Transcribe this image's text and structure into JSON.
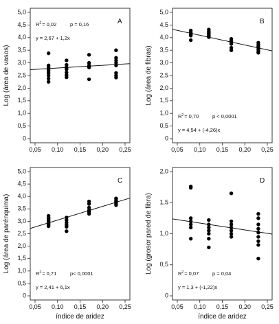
{
  "chart_data": [
    {
      "type": "scatter",
      "panel_letter": "A",
      "ylabel": "Log (área de vasos)",
      "xlabel": "",
      "xlim": [
        0.05,
        0.25
      ],
      "ylim": [
        0,
        5.0
      ],
      "xticks": [
        "0,05",
        "0,10",
        "0,15",
        "0,20",
        "0,25"
      ],
      "yticks": [
        "0",
        "0,5",
        "1,0",
        "1,5",
        "2,0",
        "2,5",
        "3,0",
        "3,5",
        "4,0",
        "4,5",
        "5,0"
      ],
      "stats": {
        "r2_label": "R",
        "r2_exp": "2",
        "r2_value": "= 0,02",
        "p_text": "p = 0,16",
        "equation": "y = 2,67 + 1,2x"
      },
      "annotation_position": "top-left",
      "fit_line": {
        "intercept": 2.67,
        "slope": 1.2
      },
      "points": [
        [
          0.08,
          3.38
        ],
        [
          0.08,
          2.9
        ],
        [
          0.08,
          2.82
        ],
        [
          0.08,
          2.75
        ],
        [
          0.08,
          2.68
        ],
        [
          0.08,
          2.6
        ],
        [
          0.08,
          2.5
        ],
        [
          0.08,
          2.38
        ],
        [
          0.08,
          2.25
        ],
        [
          0.12,
          3.1
        ],
        [
          0.12,
          2.92
        ],
        [
          0.12,
          2.82
        ],
        [
          0.12,
          2.75
        ],
        [
          0.12,
          2.62
        ],
        [
          0.12,
          2.52
        ],
        [
          0.12,
          2.43
        ],
        [
          0.17,
          3.32
        ],
        [
          0.17,
          3.0
        ],
        [
          0.17,
          2.9
        ],
        [
          0.17,
          2.82
        ],
        [
          0.17,
          2.35
        ],
        [
          0.23,
          3.5
        ],
        [
          0.23,
          3.2
        ],
        [
          0.23,
          3.1
        ],
        [
          0.23,
          3.0
        ],
        [
          0.23,
          2.9
        ],
        [
          0.23,
          2.6
        ],
        [
          0.23,
          2.5
        ],
        [
          0.23,
          2.42
        ]
      ]
    },
    {
      "type": "scatter",
      "panel_letter": "B",
      "ylabel": "Log (área de fibras)",
      "xlabel": "",
      "xlim": [
        0.05,
        0.25
      ],
      "ylim": [
        0,
        5.0
      ],
      "xticks": [
        "0,05",
        "0,10",
        "0,15",
        "0,20",
        "0,25"
      ],
      "yticks": [
        "0",
        "0,5",
        "1,0",
        "1,5",
        "2,0",
        "2,5",
        "3,0",
        "3,5",
        "4,0",
        "4,5",
        "5,0"
      ],
      "stats": {
        "r2_label": "R",
        "r2_exp": "2",
        "r2_value": "= 0,70",
        "p_text": "p < 0,0001",
        "equation": "y = 4,54 + (-4,26)x"
      },
      "annotation_position": "bottom-left",
      "fit_line": {
        "intercept": 4.54,
        "slope": -4.26
      },
      "points": [
        [
          0.08,
          4.28
        ],
        [
          0.08,
          4.2
        ],
        [
          0.08,
          4.15
        ],
        [
          0.08,
          4.12
        ],
        [
          0.08,
          4.08
        ],
        [
          0.08,
          3.9
        ],
        [
          0.12,
          4.32
        ],
        [
          0.12,
          4.25
        ],
        [
          0.12,
          4.2
        ],
        [
          0.12,
          4.15
        ],
        [
          0.12,
          4.1
        ],
        [
          0.12,
          4.05
        ],
        [
          0.12,
          4.02
        ],
        [
          0.17,
          3.95
        ],
        [
          0.17,
          3.88
        ],
        [
          0.17,
          3.82
        ],
        [
          0.17,
          3.75
        ],
        [
          0.17,
          3.6
        ],
        [
          0.17,
          3.5
        ],
        [
          0.23,
          3.8
        ],
        [
          0.23,
          3.72
        ],
        [
          0.23,
          3.65
        ],
        [
          0.23,
          3.6
        ],
        [
          0.23,
          3.52
        ],
        [
          0.23,
          3.45
        ],
        [
          0.23,
          3.4
        ]
      ]
    },
    {
      "type": "scatter",
      "panel_letter": "C",
      "ylabel": "Log (área de parénquima)",
      "xlabel": "índice de aridez",
      "xlim": [
        0.05,
        0.25
      ],
      "ylim": [
        0,
        5.0
      ],
      "xticks": [
        "0,05",
        "0,10",
        "0,15",
        "0,20",
        "0,25"
      ],
      "yticks": [
        "0",
        "0,5",
        "1,0",
        "1,5",
        "2,0",
        "2,5",
        "3,0",
        "3,5",
        "4,0",
        "4,5",
        "5,0"
      ],
      "stats": {
        "r2_label": "R",
        "r2_exp": "2",
        "r2_value": "= 0,71",
        "p_text": "p< 0,0001",
        "equation": "y = 2,41 + 6,1x"
      },
      "annotation_position": "bottom-left",
      "fit_line": {
        "intercept": 2.41,
        "slope": 6.1
      },
      "points": [
        [
          0.08,
          3.22
        ],
        [
          0.08,
          3.15
        ],
        [
          0.08,
          3.1
        ],
        [
          0.08,
          3.05
        ],
        [
          0.08,
          3.0
        ],
        [
          0.08,
          2.95
        ],
        [
          0.08,
          2.9
        ],
        [
          0.08,
          2.85
        ],
        [
          0.08,
          2.8
        ],
        [
          0.12,
          3.15
        ],
        [
          0.12,
          3.05
        ],
        [
          0.12,
          2.95
        ],
        [
          0.12,
          2.85
        ],
        [
          0.12,
          2.78
        ],
        [
          0.12,
          2.6
        ],
        [
          0.17,
          3.8
        ],
        [
          0.17,
          3.7
        ],
        [
          0.17,
          3.55
        ],
        [
          0.17,
          3.45
        ],
        [
          0.17,
          3.38
        ],
        [
          0.17,
          3.3
        ],
        [
          0.23,
          3.92
        ],
        [
          0.23,
          3.85
        ],
        [
          0.23,
          3.8
        ],
        [
          0.23,
          3.75
        ],
        [
          0.23,
          3.7
        ],
        [
          0.23,
          3.65
        ]
      ]
    },
    {
      "type": "scatter",
      "panel_letter": "D",
      "ylabel": "Log (grosor pared de fibra)",
      "xlabel": "índice de aridez",
      "xlim": [
        0.05,
        0.25
      ],
      "ylim": [
        0,
        2.0
      ],
      "xticks": [
        "0,05",
        "0,10",
        "0,15",
        "0,20",
        "0,25"
      ],
      "yticks": [
        "0",
        "0,5",
        "1,0",
        "1,5",
        "2,0"
      ],
      "stats": {
        "r2_label": "R",
        "r2_exp": "2",
        "r2_value": "= 0,07",
        "p_text": "p = 0,04",
        "equation": "y = 1,3 + (-1,22)x"
      },
      "annotation_position": "bottom-left",
      "fit_line": {
        "intercept": 1.3,
        "slope": -1.22
      },
      "points": [
        [
          0.08,
          1.76
        ],
        [
          0.08,
          1.74
        ],
        [
          0.08,
          1.25
        ],
        [
          0.08,
          1.2
        ],
        [
          0.08,
          1.15
        ],
        [
          0.08,
          1.1
        ],
        [
          0.08,
          0.92
        ],
        [
          0.12,
          1.22
        ],
        [
          0.12,
          1.15
        ],
        [
          0.12,
          1.1
        ],
        [
          0.12,
          1.05
        ],
        [
          0.12,
          1.0
        ],
        [
          0.12,
          0.92
        ],
        [
          0.12,
          0.78
        ],
        [
          0.17,
          1.65
        ],
        [
          0.17,
          1.2
        ],
        [
          0.17,
          1.15
        ],
        [
          0.17,
          1.1
        ],
        [
          0.17,
          1.05
        ],
        [
          0.17,
          1.0
        ],
        [
          0.17,
          0.95
        ],
        [
          0.23,
          1.32
        ],
        [
          0.23,
          1.25
        ],
        [
          0.23,
          1.15
        ],
        [
          0.23,
          1.08
        ],
        [
          0.23,
          1.02
        ],
        [
          0.23,
          0.95
        ],
        [
          0.23,
          0.88
        ],
        [
          0.23,
          0.82
        ],
        [
          0.23,
          0.6
        ]
      ]
    }
  ]
}
